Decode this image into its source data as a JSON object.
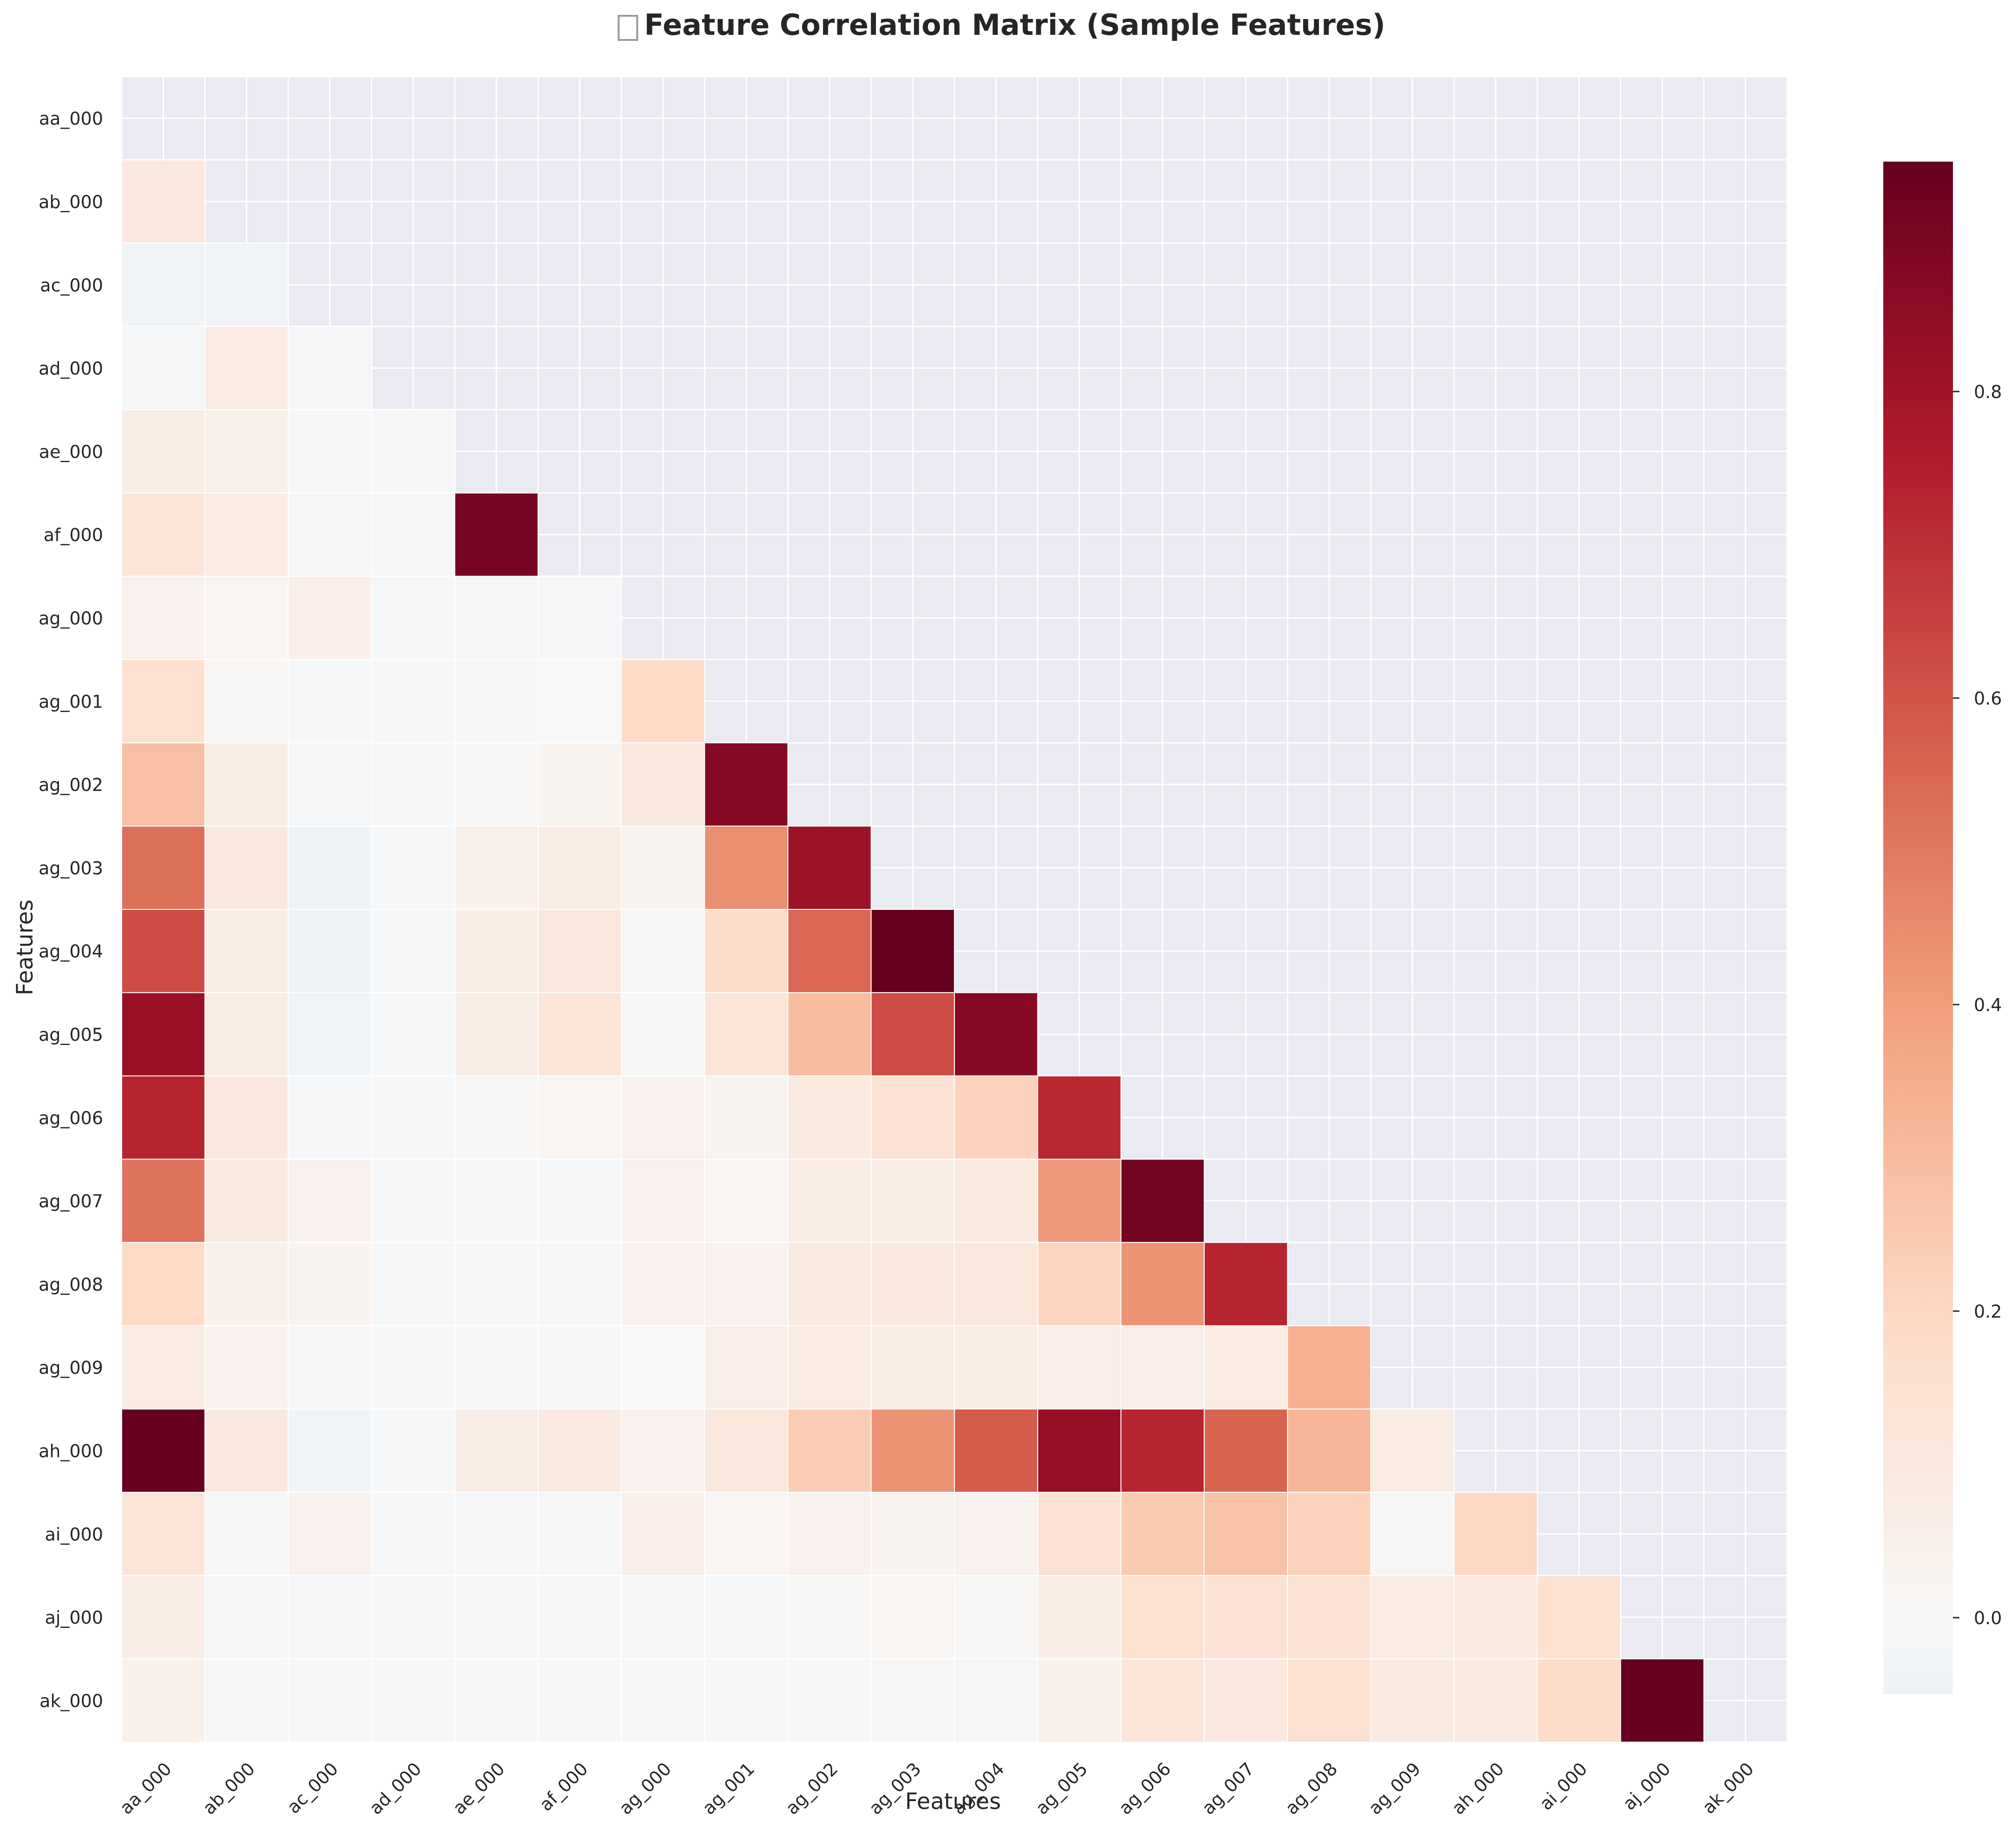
{
  "chart_data": {
    "type": "heatmap",
    "title": "Feature Correlation Matrix (Sample Features)",
    "title_icon": "chart-icon",
    "xlabel": "Features",
    "ylabel": "Features",
    "mask": "upper-triangle",
    "features": [
      "aa_000",
      "ab_000",
      "ac_000",
      "ad_000",
      "ae_000",
      "af_000",
      "ag_000",
      "ag_001",
      "ag_002",
      "ag_003",
      "ag_004",
      "ag_005",
      "ag_006",
      "ag_007",
      "ag_008",
      "ag_009",
      "ah_000",
      "ai_000",
      "aj_000",
      "ak_000"
    ],
    "values": [
      [],
      [
        0.1
      ],
      [
        -0.03,
        -0.03
      ],
      [
        -0.01,
        0.08,
        -0.01
      ],
      [
        0.07,
        0.05,
        -0.01,
        -0.01
      ],
      [
        0.12,
        0.08,
        -0.02,
        -0.01,
        0.91
      ],
      [
        0.04,
        0.02,
        0.06,
        -0.01,
        -0.02,
        -0.01
      ],
      [
        0.15,
        0.01,
        -0.01,
        -0.01,
        -0.01,
        0.0,
        0.19
      ],
      [
        0.29,
        0.07,
        -0.02,
        -0.01,
        0.01,
        0.03,
        0.11,
        0.87
      ],
      [
        0.53,
        0.1,
        -0.04,
        -0.01,
        0.05,
        0.07,
        0.03,
        0.44,
        0.81
      ],
      [
        0.62,
        0.07,
        -0.04,
        -0.01,
        0.07,
        0.11,
        0.01,
        0.18,
        0.55,
        0.95
      ],
      [
        0.82,
        0.07,
        -0.03,
        -0.01,
        0.07,
        0.12,
        0.01,
        0.12,
        0.3,
        0.62,
        0.87
      ],
      [
        0.73,
        0.1,
        -0.01,
        -0.01,
        0.01,
        0.02,
        0.04,
        0.03,
        0.09,
        0.14,
        0.22,
        0.72
      ],
      [
        0.52,
        0.09,
        0.04,
        -0.01,
        -0.01,
        -0.01,
        0.04,
        0.02,
        0.07,
        0.07,
        0.09,
        0.41,
        0.92
      ],
      [
        0.19,
        0.05,
        0.03,
        -0.01,
        -0.01,
        -0.01,
        0.04,
        0.04,
        0.09,
        0.1,
        0.11,
        0.21,
        0.43,
        0.73
      ],
      [
        0.08,
        0.04,
        -0.01,
        -0.01,
        -0.01,
        -0.01,
        0.0,
        0.06,
        0.08,
        0.07,
        0.07,
        0.06,
        0.06,
        0.08,
        0.34
      ],
      [
        0.95,
        0.1,
        -0.03,
        -0.01,
        0.07,
        0.09,
        0.04,
        0.11,
        0.24,
        0.43,
        0.58,
        0.83,
        0.73,
        0.56,
        0.32,
        0.08
      ],
      [
        0.13,
        -0.01,
        0.04,
        -0.01,
        -0.01,
        -0.01,
        0.06,
        0.02,
        0.04,
        0.03,
        0.04,
        0.14,
        0.25,
        0.28,
        0.22,
        0.01,
        0.2
      ],
      [
        0.07,
        -0.01,
        -0.01,
        -0.01,
        -0.01,
        -0.01,
        -0.01,
        -0.01,
        0.01,
        0.02,
        0.01,
        0.07,
        0.15,
        0.14,
        0.14,
        0.08,
        0.09,
        0.15
      ],
      [
        0.05,
        -0.01,
        -0.01,
        -0.01,
        -0.01,
        -0.01,
        -0.01,
        -0.01,
        -0.01,
        -0.02,
        -0.02,
        0.05,
        0.12,
        0.1,
        0.15,
        0.09,
        0.09,
        0.18,
        0.95
      ]
    ],
    "colorbar": {
      "colormap": "RdBu_r",
      "range": [
        -0.05,
        0.95
      ],
      "ticks": [
        "0.0",
        "0.2",
        "0.4",
        "0.6",
        "0.8"
      ],
      "tick_values": [
        0.0,
        0.2,
        0.4,
        0.6,
        0.8
      ]
    },
    "grid": true,
    "colors": {
      "background": "#eaeaf2",
      "grid": "#ffffff",
      "low": "#f7f7f7",
      "high": "#67001f"
    }
  }
}
